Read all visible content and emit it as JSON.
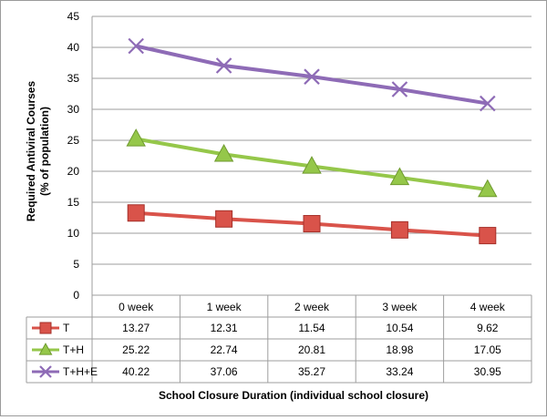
{
  "chart_data": {
    "type": "line",
    "title": "",
    "xlabel": "School Closure Duration (individual school closure)",
    "ylabel": [
      "Required Antiviral Courses",
      "(% of population)"
    ],
    "ylim": [
      0,
      45
    ],
    "yticks": [
      0,
      5,
      10,
      15,
      20,
      25,
      30,
      35,
      40,
      45
    ],
    "categories": [
      "0 week",
      "1 week",
      "2 week",
      "3 week",
      "4 week"
    ],
    "grid": "horizontal",
    "legend": "data-table",
    "series": [
      {
        "name": "T",
        "values": [
          13.27,
          12.31,
          11.54,
          10.54,
          9.62
        ],
        "labels": [
          "13.27",
          "12.31",
          "11.54",
          "10.54",
          "9.62"
        ],
        "color": "#d9534a",
        "marker": "square"
      },
      {
        "name": "T+H",
        "values": [
          25.22,
          22.74,
          20.81,
          18.98,
          17.05
        ],
        "labels": [
          "25.22",
          "22.74",
          "20.81",
          "18.98",
          "17.05"
        ],
        "color": "#95c74a",
        "marker": "triangle"
      },
      {
        "name": "T+H+E",
        "values": [
          40.22,
          37.06,
          35.27,
          33.24,
          30.95
        ],
        "labels": [
          "40.22",
          "37.06",
          "35.27",
          "33.24",
          "30.95"
        ],
        "color": "#8e6bb6",
        "marker": "x"
      }
    ]
  }
}
